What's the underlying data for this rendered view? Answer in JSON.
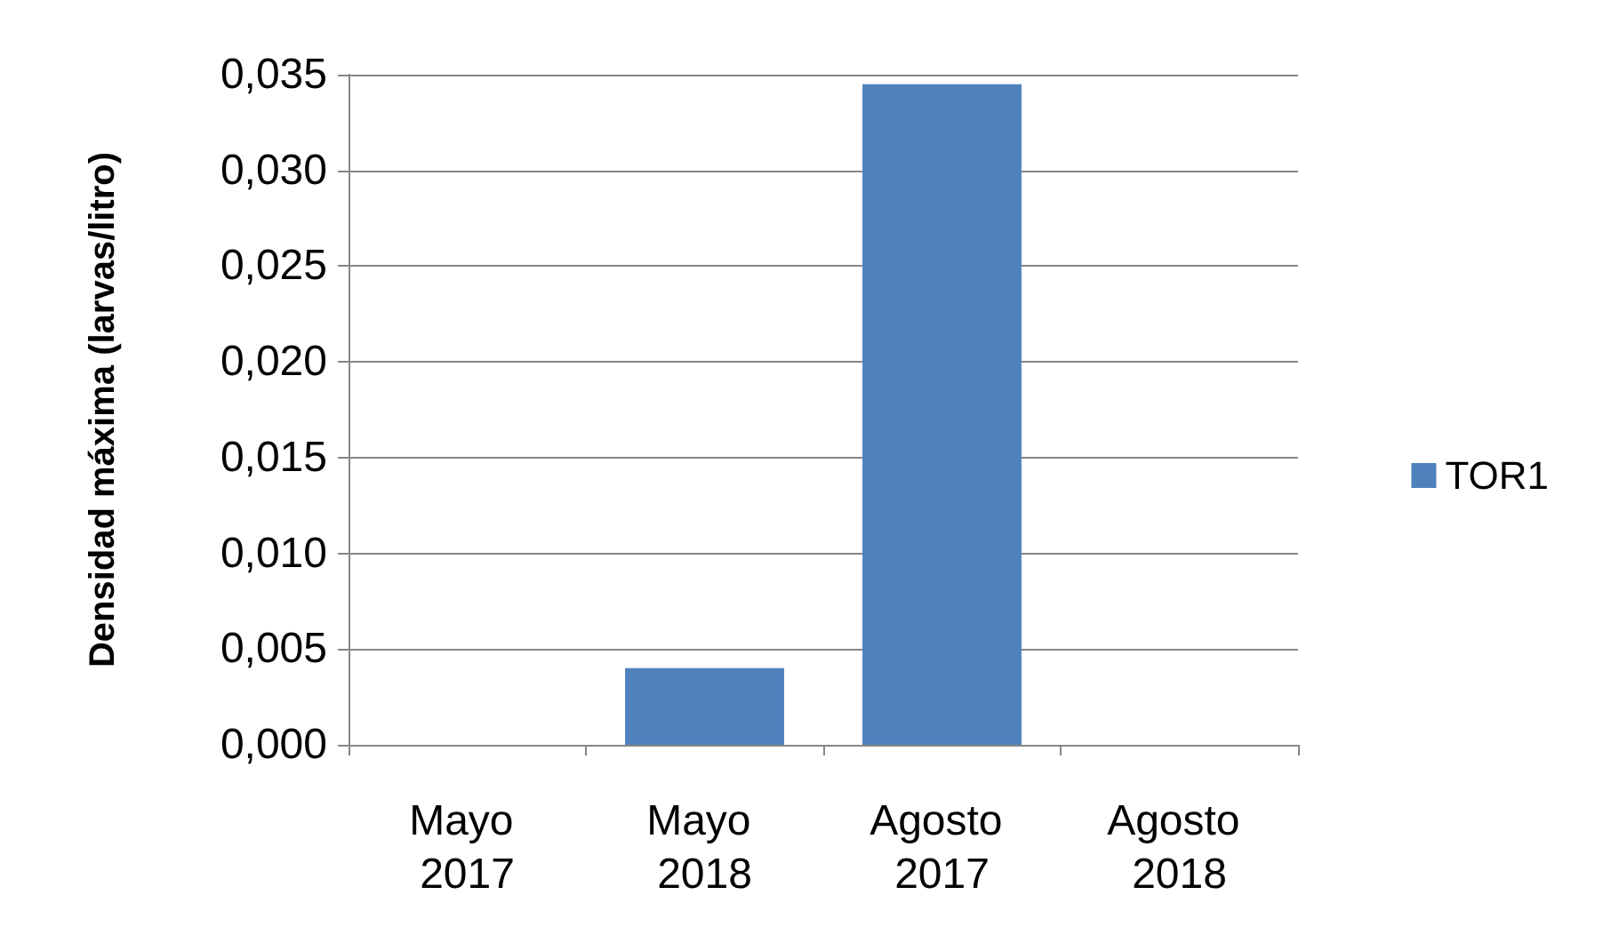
{
  "chart_data": {
    "type": "bar",
    "ylabel": "Densidad máxima (larvas/litro)",
    "categories": [
      "Mayo 2017",
      "Mayo 2018",
      "Agosto 2017",
      "Agosto 2018"
    ],
    "series": [
      {
        "name": "TOR1",
        "color": "#4f81bd",
        "values": [
          0,
          0.004,
          0.0345,
          0
        ]
      }
    ],
    "ylim": [
      0,
      0.035
    ],
    "yticks": [
      {
        "value": 0,
        "label": "0,000"
      },
      {
        "value": 0.005,
        "label": "0,005"
      },
      {
        "value": 0.01,
        "label": "0,010"
      },
      {
        "value": 0.015,
        "label": "0,015"
      },
      {
        "value": 0.02,
        "label": "0,020"
      },
      {
        "value": 0.025,
        "label": "0,025"
      },
      {
        "value": 0.03,
        "label": "0,030"
      },
      {
        "value": 0.035,
        "label": "0,035"
      }
    ],
    "grid": "y",
    "legend": "right"
  }
}
